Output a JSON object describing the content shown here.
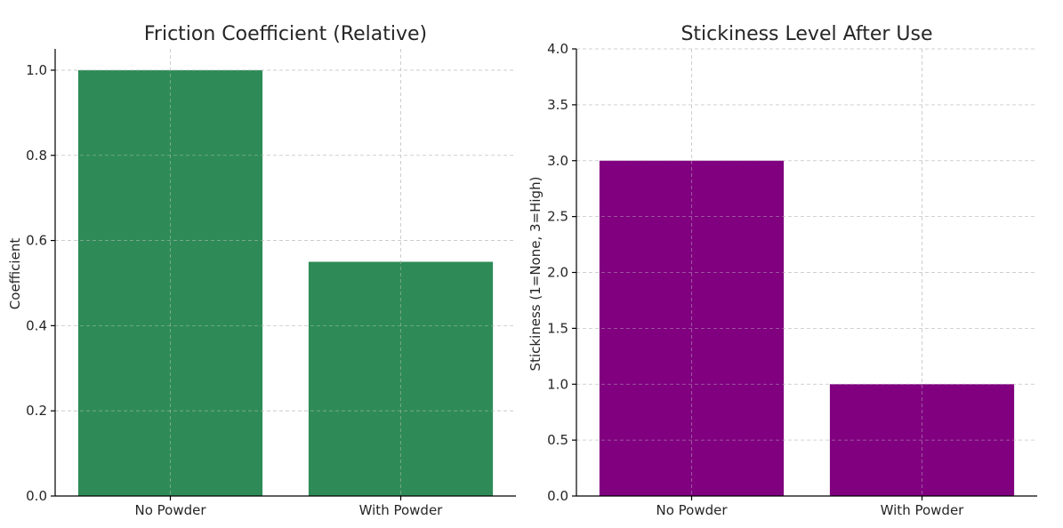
{
  "chart_data": [
    {
      "type": "bar",
      "title": "Friction Coefficient (Relative)",
      "xlabel": "",
      "ylabel": "Coefficient",
      "categories": [
        "No Powder",
        "With Powder"
      ],
      "values": [
        1.0,
        0.55
      ],
      "ylim": [
        0,
        1.05
      ],
      "yticks": [
        "0.0",
        "0.2",
        "0.4",
        "0.6",
        "0.8",
        "1.0"
      ],
      "ytick_values": [
        0,
        0.2,
        0.4,
        0.6,
        0.8,
        1.0
      ],
      "color": "#2e8b57",
      "grid": true
    },
    {
      "type": "bar",
      "title": "Stickiness Level After Use",
      "xlabel": "",
      "ylabel": "Stickiness (1=None, 3=High)",
      "categories": [
        "No Powder",
        "With Powder"
      ],
      "values": [
        3,
        1
      ],
      "ylim": [
        0,
        4.0
      ],
      "yticks": [
        "0.0",
        "0.5",
        "1.0",
        "1.5",
        "2.0",
        "2.5",
        "3.0",
        "3.5",
        "4.0"
      ],
      "ytick_values": [
        0,
        0.5,
        1.0,
        1.5,
        2.0,
        2.5,
        3.0,
        3.5,
        4.0
      ],
      "color": "#800080",
      "grid": true
    }
  ]
}
